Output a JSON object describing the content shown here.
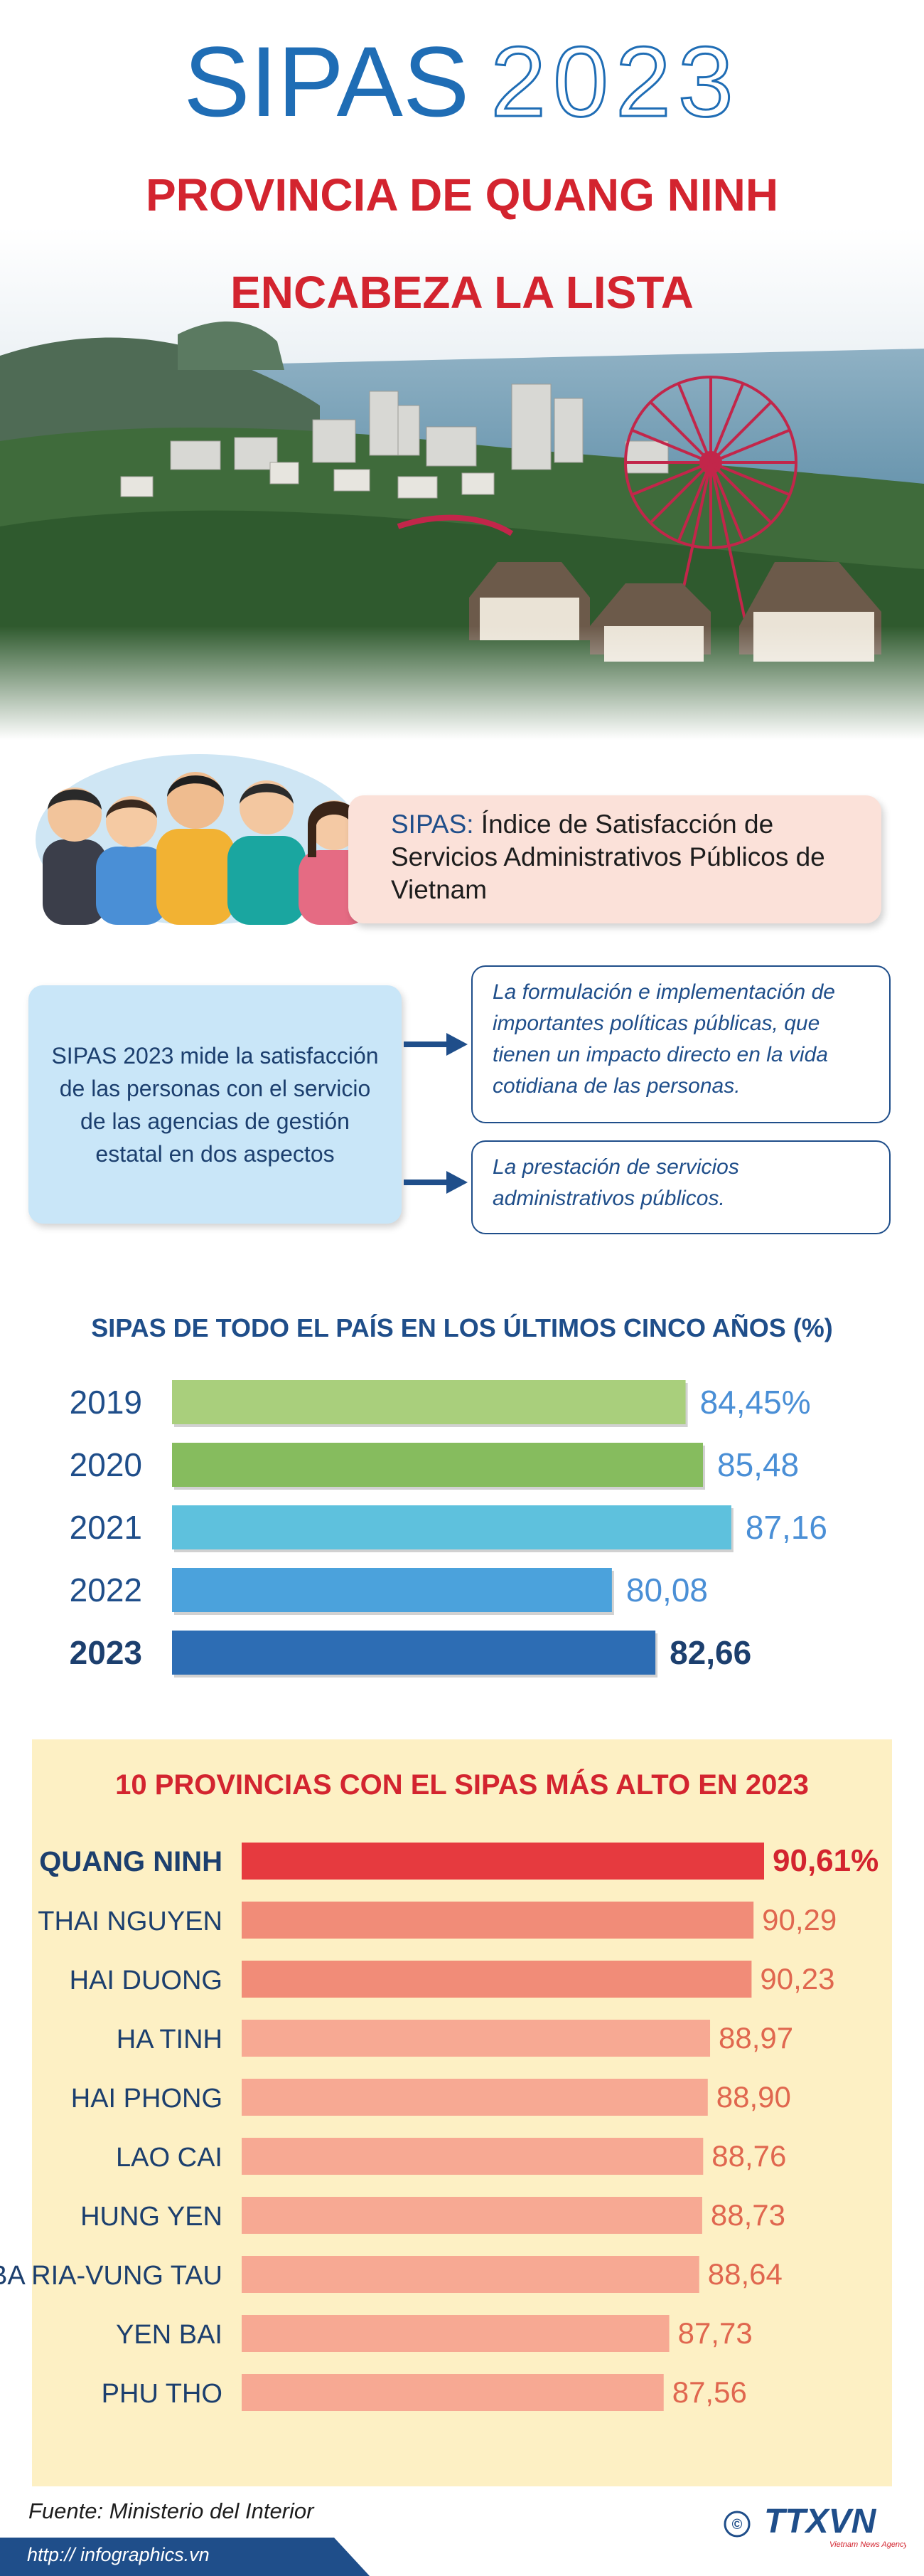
{
  "header": {
    "title_word": "SIPAS",
    "title_year": "2023",
    "subtitle_line1": "PROVINCIA DE QUANG NINH",
    "subtitle_line2": "ENCABEZA LA LISTA"
  },
  "definition": {
    "label": "SIPAS:",
    "text": " Índice de Satisfacción de Servicios Administrativos Públicos de Vietnam"
  },
  "aspects": {
    "main": "SIPAS 2023 mide la satisfacción de las personas con el servicio de las agencias de gestión estatal en dos aspectos",
    "items": [
      "La formulación e implementación de importantes políticas públicas,  que  tienen un impacto directo en la vida cotidiana de las personas.",
      "La prestación de servicios administrativos públicos."
    ]
  },
  "chart_data": [
    {
      "type": "bar",
      "orientation": "horizontal",
      "title": "SIPAS DE TODO EL PAÍS EN LOS ÚLTIMOS CINCO AÑOS (%)",
      "categories": [
        "2019",
        "2020",
        "2021",
        "2022",
        "2023"
      ],
      "values": [
        84.45,
        85.48,
        87.16,
        80.08,
        82.66
      ],
      "value_labels": [
        "84,45%",
        "85,48",
        "87,16",
        "80,08",
        "82,66"
      ],
      "highlight": "2023",
      "colors": [
        "#a9cf7c",
        "#86bc5e",
        "#5ec1dd",
        "#4ba2dc",
        "#2d6db4"
      ]
    },
    {
      "type": "bar",
      "orientation": "horizontal",
      "title": "10 PROVINCIAS CON EL SIPAS MÁS ALTO EN 2023",
      "categories": [
        "QUANG NINH",
        "THAI NGUYEN",
        "HAI DUONG",
        "HA TINH",
        "HAI PHONG",
        "LAO CAI",
        "HUNG YEN",
        "BA RIA-VUNG TAU",
        "YEN BAI",
        "PHU THO"
      ],
      "values": [
        90.61,
        90.29,
        90.23,
        88.97,
        88.9,
        88.76,
        88.73,
        88.64,
        87.73,
        87.56
      ],
      "value_labels": [
        "90,61%",
        "90,29",
        "90,23",
        "88,97",
        "88,90",
        "88,76",
        "88,73",
        "88,64",
        "87,73",
        "87,56"
      ],
      "highlight": "QUANG NINH",
      "colors": {
        "highlight": "#e63a3f",
        "normal": "#f18c78",
        "normal_light": "#f7a993"
      }
    }
  ],
  "footer": {
    "source": "Fuente: Ministerio del Interior",
    "logo_text": "TTXVN",
    "logo_sub": "Vietnam News Agency",
    "copyright": "©",
    "url": "http:// infographics.vn"
  }
}
